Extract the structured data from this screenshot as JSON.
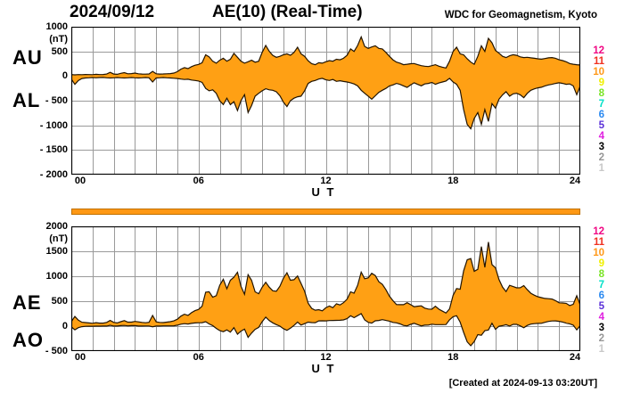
{
  "header": {
    "date": "2024/09/12",
    "title": "AE(10) (Real-Time)",
    "observatory": "WDC for Geomagnetism, Kyoto"
  },
  "footer": {
    "created": "[Created at 2024-09-13 03:20UT]"
  },
  "colors": {
    "fill": "#FFA014",
    "outline": "#221400",
    "grid": "#9A9A9A",
    "frame": "#000000",
    "station_bar": "#FF9814",
    "station_bar_border": "#C07000"
  },
  "legend": {
    "values": [
      "12",
      "11",
      "10",
      "9",
      "8",
      "7",
      "6",
      "5",
      "4",
      "3",
      "2",
      "1"
    ],
    "colors": [
      "#F00884",
      "#F03020",
      "#FF9818",
      "#F0F000",
      "#78E424",
      "#00E0C8",
      "#2888F0",
      "#5A30D8",
      "#E020E0",
      "#000000",
      "#969696",
      "#C8C8C8"
    ]
  },
  "panels": [
    {
      "id": "top",
      "left_labels": [
        "AU",
        "AL"
      ],
      "unit": "(nT)",
      "yticks": [
        "1000",
        "500",
        "0",
        "- 500",
        "- 1000",
        "- 1500",
        "- 2000"
      ],
      "xticks": [
        "00",
        "06",
        "12",
        "18",
        "24"
      ],
      "xtick_hours": [
        0,
        6,
        12,
        18,
        24
      ],
      "xlabel": "U T"
    },
    {
      "id": "bottom",
      "left_labels": [
        "AE",
        "AO"
      ],
      "unit": "(nT)",
      "yticks": [
        "2000",
        "1500",
        "1000",
        "500",
        "0",
        "- 500"
      ],
      "xticks": [
        "00",
        "06",
        "12",
        "18",
        "24"
      ],
      "xtick_hours": [
        0,
        6,
        12,
        18,
        24
      ],
      "xlabel": "U T"
    }
  ],
  "chart_data": [
    {
      "type": "area",
      "panel": "AU-AL",
      "title": "AE(10) (Real-Time) 2024/09/12",
      "xlabel": "U T",
      "ylabel": "(nT)",
      "xlim_hours": [
        0,
        24
      ],
      "x_start_hour": 0,
      "x_step_hours": 0.166667,
      "ylim": [
        -2000,
        1000
      ],
      "y_gridline_step": 500,
      "x_gridline_step_hours": 1,
      "grid": true,
      "series": [
        {
          "name": "AU",
          "values": [
            30,
            25,
            30,
            28,
            32,
            30,
            28,
            35,
            30,
            32,
            40,
            75,
            40,
            35,
            55,
            70,
            45,
            50,
            60,
            45,
            40,
            38,
            42,
            95,
            45,
            40,
            42,
            45,
            50,
            60,
            90,
            140,
            170,
            150,
            190,
            220,
            235,
            270,
            430,
            390,
            300,
            260,
            320,
            360,
            300,
            340,
            460,
            380,
            300,
            260,
            290,
            320,
            280,
            300,
            480,
            620,
            500,
            420,
            380,
            400,
            430,
            450,
            420,
            480,
            585,
            450,
            400,
            310,
            250,
            230,
            270,
            260,
            290,
            314,
            300,
            340,
            330,
            360,
            420,
            550,
            500,
            620,
            794,
            600,
            560,
            590,
            614,
            560,
            550,
            480,
            400,
            330,
            283,
            260,
            230,
            240,
            250,
            253,
            230,
            210,
            200,
            193,
            210,
            230,
            200,
            180,
            163,
            300,
            500,
            585,
            450,
            430,
            350,
            283,
            240,
            400,
            614,
            500,
            765,
            675,
            520,
            464,
            400,
            374,
            410,
            433,
            420,
            390,
            374,
            380,
            370,
            360,
            350,
            343,
            355,
            370,
            374,
            360,
            330,
            314,
            290,
            253,
            240,
            230,
            223
          ]
        },
        {
          "name": "AL",
          "values": [
            -60,
            -170,
            -90,
            -50,
            -40,
            -35,
            -30,
            -35,
            -30,
            -28,
            -35,
            -40,
            -35,
            -30,
            -35,
            -40,
            -35,
            -30,
            -35,
            -40,
            -35,
            -30,
            -35,
            -120,
            -40,
            -35,
            -30,
            -35,
            -40,
            -45,
            -50,
            -60,
            -70,
            -65,
            -80,
            -90,
            -100,
            -130,
            -250,
            -300,
            -280,
            -350,
            -500,
            -580,
            -450,
            -580,
            -520,
            -700,
            -500,
            -379,
            -740,
            -600,
            -408,
            -350,
            -300,
            -258,
            -280,
            -289,
            -320,
            -400,
            -529,
            -619,
            -500,
            -450,
            -420,
            -408,
            -300,
            -150,
            -108,
            -90,
            -60,
            -47,
            -78,
            -90,
            -70,
            -108,
            -95,
            -110,
            -120,
            -137,
            -160,
            -200,
            -289,
            -350,
            -408,
            -469,
            -400,
            -330,
            -289,
            -250,
            -200,
            -180,
            -150,
            -170,
            -200,
            -230,
            -180,
            -137,
            -170,
            -198,
            -160,
            -150,
            -130,
            -168,
            -140,
            -120,
            -100,
            -47,
            -120,
            -168,
            -289,
            -679,
            -980,
            -1070,
            -859,
            -740,
            -980,
            -679,
            -920,
            -559,
            -650,
            -469,
            -380,
            -318,
            -408,
            -360,
            -348,
            -380,
            -439,
            -350,
            -289,
            -260,
            -240,
            -228,
            -200,
            -180,
            -168,
            -150,
            -137,
            -150,
            -168,
            -160,
            -200,
            -379,
            -198
          ]
        }
      ]
    },
    {
      "type": "area",
      "panel": "AE-AO",
      "xlabel": "U T",
      "ylabel": "(nT)",
      "xlim_hours": [
        0,
        24
      ],
      "ylim": [
        -500,
        2000
      ],
      "y_gridline_step": 500,
      "x_gridline_step_hours": 1,
      "grid": true,
      "series": [
        {
          "name": "AE",
          "derived_from": "AU - AL"
        },
        {
          "name": "AO",
          "derived_from": "(AU + AL) / 2"
        }
      ]
    }
  ]
}
